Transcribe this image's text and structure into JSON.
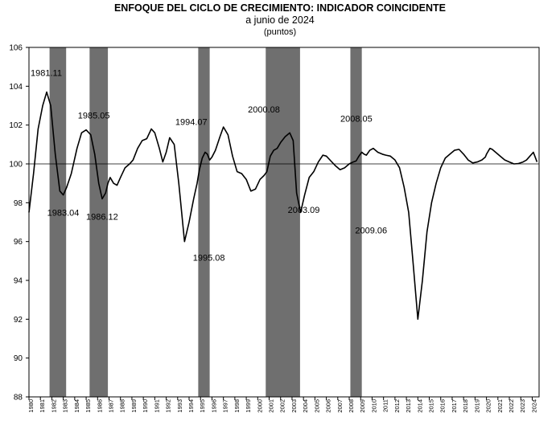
{
  "header": {
    "title": "ENFOQUE DEL CICLO DE CRECIMIENTO: INDICADOR COINCIDENTE",
    "subtitle": "a junio de 2024",
    "units": "(puntos)"
  },
  "footnote": "",
  "colors": {
    "line": "#000000",
    "shade": "#6f6f6f",
    "frame": "#000000"
  },
  "chart_data": {
    "type": "line",
    "title": "ENFOQUE DEL CICLO DE CRECIMIENTO: INDICADOR COINCIDENTE",
    "subtitle": "a junio de 2024",
    "ylabel": "(puntos)",
    "xlabel": "",
    "xlim": [
      1980.0,
      2024.6
    ],
    "ylim": [
      88,
      106
    ],
    "yticks": [
      88,
      90,
      92,
      94,
      96,
      98,
      100,
      102,
      104,
      106
    ],
    "xticks": [
      "1980",
      "1981",
      "1982",
      "1983",
      "1984",
      "1985",
      "1986",
      "1987",
      "1988",
      "1989",
      "1990",
      "1991",
      "1992",
      "1993",
      "1994",
      "1995",
      "1996",
      "1997",
      "1998",
      "1999",
      "2000",
      "2001",
      "2002",
      "2003",
      "2004",
      "2005",
      "2006",
      "2007",
      "2008",
      "2009",
      "2010",
      "2011",
      "2012",
      "2013",
      "2014",
      "2015",
      "2016",
      "2017",
      "2018",
      "2019",
      "2020",
      "2021",
      "2022",
      "2023",
      "2024"
    ],
    "reference_line": 100,
    "grid": false,
    "shaded_periods": [
      {
        "start": 1981.8,
        "end": 1983.25
      },
      {
        "start": 1985.3,
        "end": 1986.9
      },
      {
        "start": 1994.8,
        "end": 1995.8
      },
      {
        "start": 2000.7,
        "end": 2003.7
      },
      {
        "start": 2008.1,
        "end": 2009.1
      }
    ],
    "series": [
      {
        "name": "Indicador Coincidente",
        "x": [
          1980.0,
          1980.4,
          1980.8,
          1981.2,
          1981.55,
          1981.9,
          1982.3,
          1982.7,
          1983.0,
          1983.3,
          1983.7,
          1984.2,
          1984.6,
          1985.0,
          1985.4,
          1985.75,
          1986.1,
          1986.4,
          1986.7,
          1986.9,
          1987.1,
          1987.4,
          1987.7,
          1988.0,
          1988.4,
          1988.8,
          1989.1,
          1989.5,
          1989.9,
          1990.3,
          1990.7,
          1991.0,
          1991.4,
          1991.7,
          1992.0,
          1992.3,
          1992.7,
          1993.1,
          1993.6,
          1994.0,
          1994.4,
          1994.7,
          1994.9,
          1995.15,
          1995.4,
          1995.6,
          1995.8,
          1996.0,
          1996.3,
          1996.7,
          1997.0,
          1997.4,
          1997.8,
          1998.2,
          1998.6,
          1999.0,
          1999.4,
          1999.8,
          2000.2,
          2000.55,
          2000.8,
          2001.1,
          2001.4,
          2001.7,
          2002.0,
          2002.4,
          2002.8,
          2003.1,
          2003.4,
          2003.75,
          2004.1,
          2004.5,
          2004.9,
          2005.3,
          2005.7,
          2006.0,
          2006.4,
          2006.8,
          2007.2,
          2007.6,
          2008.0,
          2008.35,
          2008.6,
          2008.85,
          2009.1,
          2009.3,
          2009.5,
          2009.8,
          2010.1,
          2010.5,
          2010.9,
          2011.2,
          2011.6,
          2012.0,
          2012.4,
          2012.8,
          2013.2,
          2013.6,
          2014.0,
          2014.4,
          2014.8,
          2015.2,
          2015.6,
          2016.0,
          2016.4,
          2016.8,
          2017.2,
          2017.6,
          2018.0,
          2018.4,
          2018.8,
          2019.2,
          2019.6,
          2019.9,
          2020.0,
          2020.1,
          2020.2,
          2020.3,
          2020.5,
          2020.8,
          2021.2,
          2021.6,
          2022.0,
          2022.4,
          2022.8,
          2023.2,
          2023.5,
          2023.8,
          2024.1,
          2024.42
        ],
        "y": [
          97.5,
          99.5,
          101.8,
          103.0,
          103.7,
          103.0,
          100.5,
          98.6,
          98.4,
          98.8,
          99.5,
          100.8,
          101.6,
          101.75,
          101.5,
          100.5,
          99.0,
          98.2,
          98.5,
          99.0,
          99.3,
          99.0,
          98.9,
          99.3,
          99.8,
          100.0,
          100.2,
          100.8,
          101.2,
          101.3,
          101.8,
          101.6,
          100.8,
          100.1,
          100.6,
          101.35,
          101.0,
          99.0,
          96.0,
          97.0,
          98.2,
          99.0,
          99.7,
          100.3,
          100.6,
          100.5,
          100.2,
          100.35,
          100.7,
          101.4,
          101.9,
          101.5,
          100.4,
          99.6,
          99.5,
          99.2,
          98.6,
          98.7,
          99.2,
          99.4,
          99.6,
          100.4,
          100.7,
          100.8,
          101.1,
          101.4,
          101.6,
          101.2,
          98.5,
          97.5,
          98.4,
          99.3,
          99.6,
          100.1,
          100.45,
          100.4,
          100.15,
          99.9,
          99.7,
          99.8,
          100.0,
          100.1,
          100.15,
          100.4,
          100.6,
          100.5,
          100.45,
          100.7,
          100.8,
          100.6,
          100.5,
          100.45,
          100.4,
          100.2,
          99.8,
          98.8,
          97.5,
          94.8,
          92.0,
          94.0,
          96.5,
          98.0,
          99.0,
          99.8,
          100.3,
          100.5,
          100.7,
          100.75,
          100.5,
          100.2,
          100.05,
          100.1,
          100.2,
          100.35,
          100.5,
          100.6,
          100.7,
          100.8,
          100.75,
          100.6,
          100.4,
          100.2,
          100.1,
          100.0,
          100.02,
          100.1,
          100.2,
          100.4,
          100.6,
          100.1
        ]
      }
    ],
    "annotations": [
      {
        "text": "1981.11",
        "x": 1981.55,
        "y": 103.7
      },
      {
        "text": "1983.04",
        "x": 1983.0,
        "y": 98.4
      },
      {
        "text": "1985.05",
        "x": 1985.4,
        "y": 101.75
      },
      {
        "text": "1986.12",
        "x": 1986.4,
        "y": 98.2
      },
      {
        "text": "1994.07",
        "x": 1994.2,
        "y": 101.35
      },
      {
        "text": "1995.08",
        "x": 1995.6,
        "y": 96.0
      },
      {
        "text": "2000.08",
        "x": 2000.55,
        "y": 101.9
      },
      {
        "text": "2003.09",
        "x": 2003.75,
        "y": 98.6
      },
      {
        "text": "2008.05",
        "x": 2008.35,
        "y": 101.6
      },
      {
        "text": "2009.06",
        "x": 2009.5,
        "y": 97.5
      }
    ]
  }
}
